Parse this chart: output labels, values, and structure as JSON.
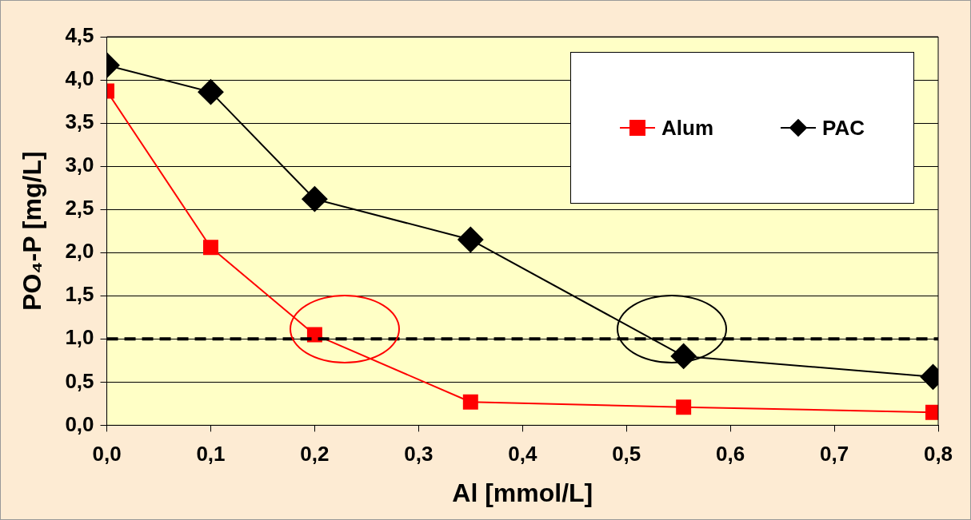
{
  "chart_data": {
    "type": "line",
    "xlabel": "Al [mmol/L]",
    "ylabel": "PO₄-P [mg/L]",
    "xlim": [
      0,
      0.8
    ],
    "ylim": [
      0,
      4.5
    ],
    "xticks": [
      {
        "value": 0,
        "label": "0,0"
      },
      {
        "value": 0.1,
        "label": "0,1"
      },
      {
        "value": 0.2,
        "label": "0,2"
      },
      {
        "value": 0.3,
        "label": "0,3"
      },
      {
        "value": 0.4,
        "label": "0,4"
      },
      {
        "value": 0.5,
        "label": "0,5"
      },
      {
        "value": 0.6,
        "label": "0,6"
      },
      {
        "value": 0.7,
        "label": "0,7"
      },
      {
        "value": 0.8,
        "label": "0,8"
      }
    ],
    "yticks": [
      {
        "value": 0,
        "label": "0,0"
      },
      {
        "value": 0.5,
        "label": "0,5"
      },
      {
        "value": 1,
        "label": "1,0"
      },
      {
        "value": 1.5,
        "label": "1,5"
      },
      {
        "value": 2,
        "label": "2,0"
      },
      {
        "value": 2.5,
        "label": "2,5"
      },
      {
        "value": 3,
        "label": "3,0"
      },
      {
        "value": 3.5,
        "label": "3,5"
      },
      {
        "value": 4,
        "label": "4,0"
      },
      {
        "value": 4.5,
        "label": "4,5"
      }
    ],
    "grid": "y",
    "legend": "top right",
    "series": [
      {
        "name": "Alum",
        "color": "#ff0000",
        "marker": "square",
        "x": [
          0,
          0.1,
          0.2,
          0.35,
          0.555,
          0.795
        ],
        "values": [
          3.87,
          2.06,
          1.05,
          0.27,
          0.21,
          0.15
        ]
      },
      {
        "name": "PAC",
        "color": "#000000",
        "marker": "diamond",
        "x": [
          0,
          0.1,
          0.2,
          0.35,
          0.555,
          0.795
        ],
        "values": [
          4.17,
          3.86,
          2.62,
          2.15,
          0.8,
          0.56
        ]
      }
    ],
    "ref_lines": [
      {
        "axis": "y",
        "value": 1,
        "color": "#000000",
        "line_style": "dashed"
      }
    ]
  }
}
